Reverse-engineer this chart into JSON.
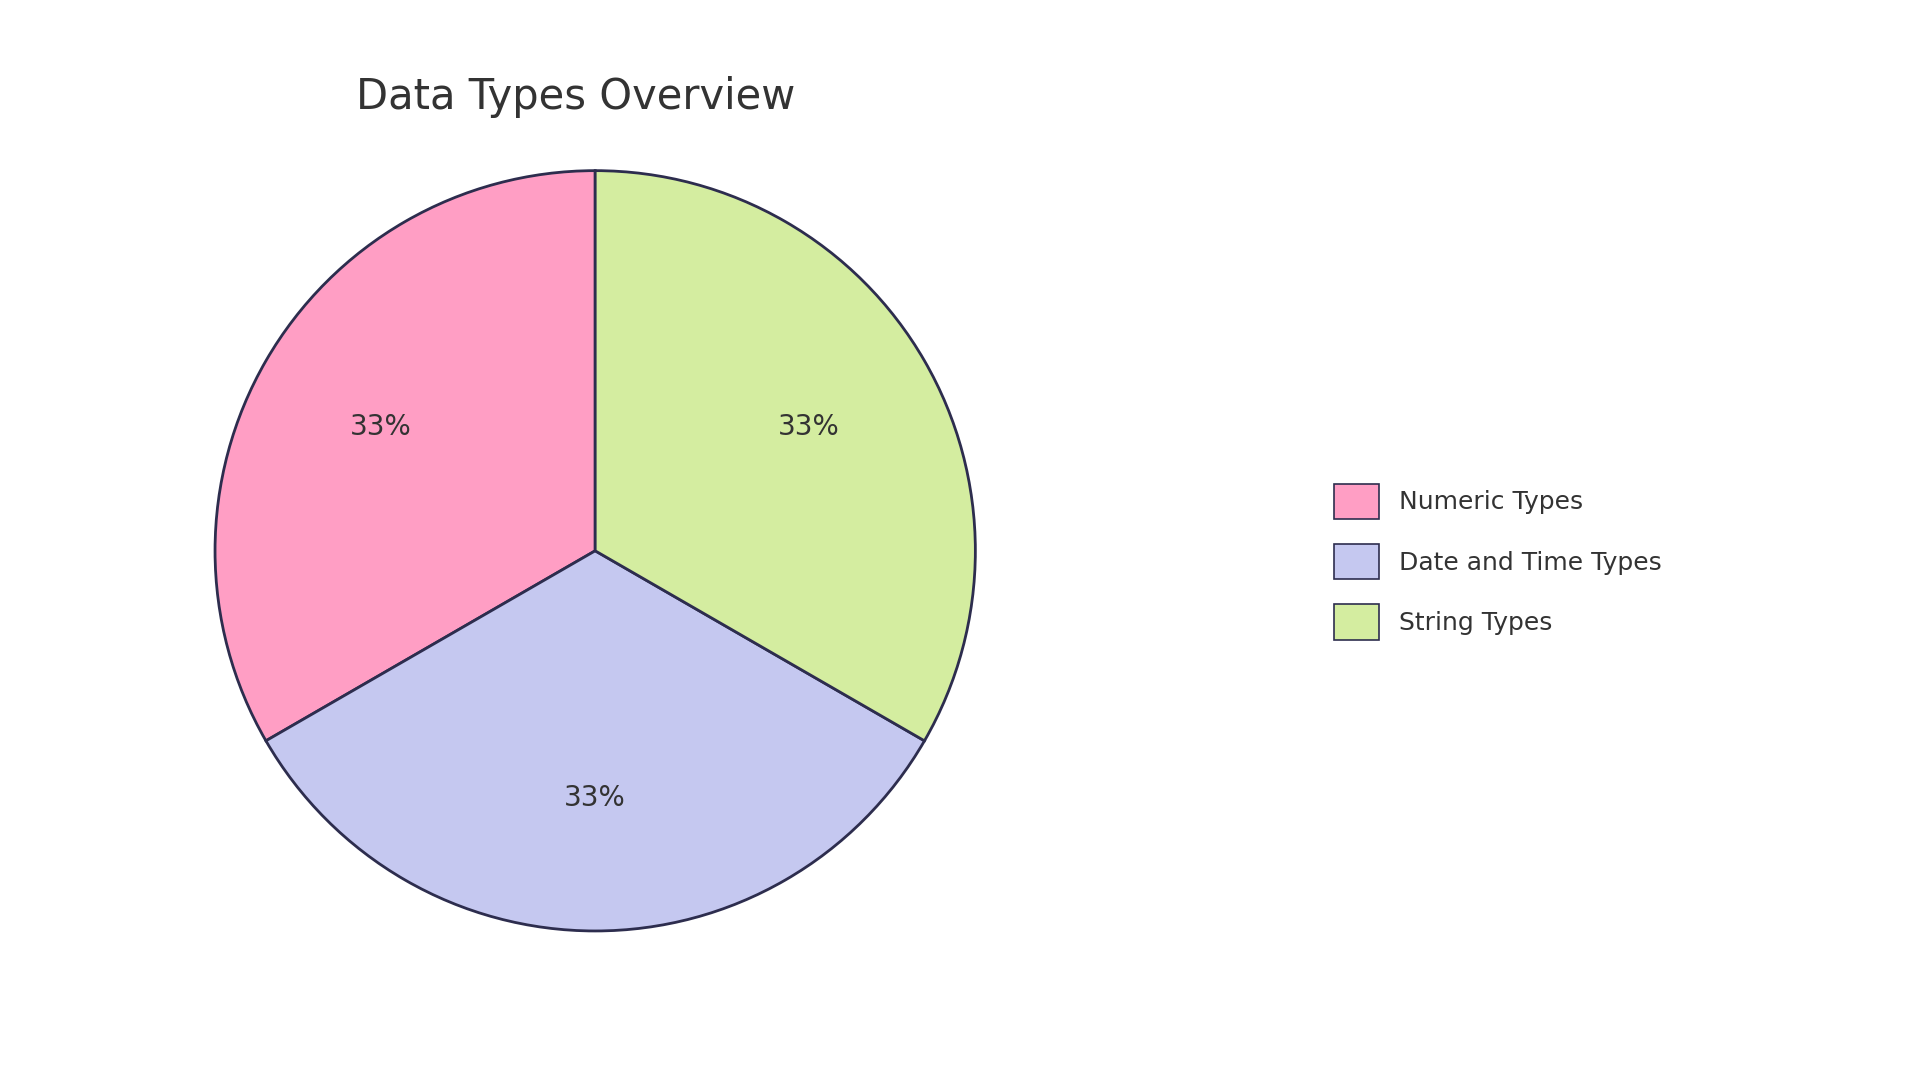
{
  "title": "Data Types Overview",
  "labels": [
    "Numeric Types",
    "Date and Time Types",
    "String Types"
  ],
  "values": [
    33.33,
    33.34,
    33.33
  ],
  "colors": [
    "#FF9EC4",
    "#C5C8F0",
    "#D4EDA0"
  ],
  "edge_color": "#2d2d4e",
  "edge_width": 2.0,
  "title_fontsize": 30,
  "pct_fontsize": 20,
  "legend_fontsize": 18,
  "background_color": "#ffffff",
  "startangle": 90,
  "text_color": "#333333"
}
